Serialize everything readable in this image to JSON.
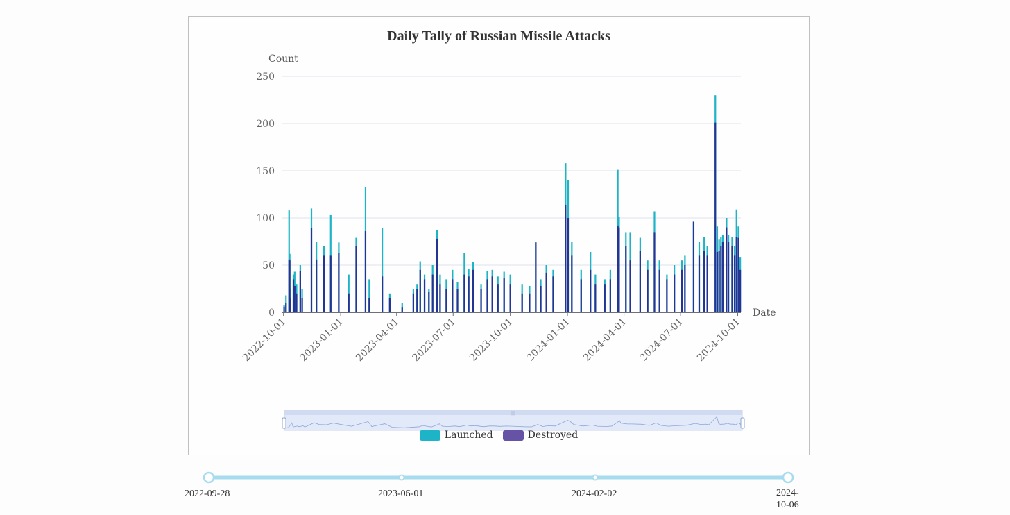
{
  "chart_data": {
    "type": "bar",
    "title": "Daily Tally of Russian Missile Attacks",
    "xlabel": "Date",
    "ylabel": "Count",
    "ylim": [
      0,
      250
    ],
    "yticks": [
      0,
      50,
      100,
      150,
      200,
      250
    ],
    "x_range": [
      "2022-09-28",
      "2024-10-06"
    ],
    "xticks": [
      "2022-10-01",
      "2023-01-01",
      "2023-04-01",
      "2023-07-01",
      "2023-10-01",
      "2024-01-01",
      "2024-04-01",
      "2024-07-01",
      "2024-10-01"
    ],
    "series": [
      {
        "name": "Launched",
        "color": "#1cb4c6",
        "points": [
          [
            "2022-10-02",
            8
          ],
          [
            "2022-10-05",
            18
          ],
          [
            "2022-10-10",
            108
          ],
          [
            "2022-10-11",
            62
          ],
          [
            "2022-10-12",
            25
          ],
          [
            "2022-10-17",
            40
          ],
          [
            "2022-10-19",
            43
          ],
          [
            "2022-10-22",
            30
          ],
          [
            "2022-10-28",
            50
          ],
          [
            "2022-10-31",
            25
          ],
          [
            "2022-11-15",
            110
          ],
          [
            "2022-11-23",
            75
          ],
          [
            "2022-12-05",
            70
          ],
          [
            "2022-12-16",
            103
          ],
          [
            "2022-12-29",
            74
          ],
          [
            "2023-01-14",
            40
          ],
          [
            "2023-01-26",
            79
          ],
          [
            "2023-02-10",
            133
          ],
          [
            "2023-02-16",
            35
          ],
          [
            "2023-03-09",
            89
          ],
          [
            "2023-03-21",
            20
          ],
          [
            "2023-04-10",
            10
          ],
          [
            "2023-04-28",
            25
          ],
          [
            "2023-05-04",
            30
          ],
          [
            "2023-05-09",
            54
          ],
          [
            "2023-05-16",
            40
          ],
          [
            "2023-05-23",
            25
          ],
          [
            "2023-05-29",
            50
          ],
          [
            "2023-06-05",
            87
          ],
          [
            "2023-06-10",
            40
          ],
          [
            "2023-06-20",
            35
          ],
          [
            "2023-06-30",
            45
          ],
          [
            "2023-07-08",
            32
          ],
          [
            "2023-07-19",
            63
          ],
          [
            "2023-07-26",
            46
          ],
          [
            "2023-08-02",
            53
          ],
          [
            "2023-08-15",
            30
          ],
          [
            "2023-08-25",
            44
          ],
          [
            "2023-09-02",
            45
          ],
          [
            "2023-09-11",
            38
          ],
          [
            "2023-09-21",
            43
          ],
          [
            "2023-10-01",
            40
          ],
          [
            "2023-10-20",
            30
          ],
          [
            "2023-11-01",
            28
          ],
          [
            "2023-11-11",
            75
          ],
          [
            "2023-11-19",
            35
          ],
          [
            "2023-11-28",
            50
          ],
          [
            "2023-12-09",
            45
          ],
          [
            "2023-12-29",
            158
          ],
          [
            "2024-01-02",
            140
          ],
          [
            "2024-01-08",
            75
          ],
          [
            "2024-01-23",
            45
          ],
          [
            "2024-02-07",
            64
          ],
          [
            "2024-02-15",
            40
          ],
          [
            "2024-03-01",
            35
          ],
          [
            "2024-03-10",
            45
          ],
          [
            "2024-03-22",
            151
          ],
          [
            "2024-03-24",
            101
          ],
          [
            "2024-04-04",
            85
          ],
          [
            "2024-04-11",
            85
          ],
          [
            "2024-04-27",
            79
          ],
          [
            "2024-05-09",
            55
          ],
          [
            "2024-05-20",
            107
          ],
          [
            "2024-05-28",
            55
          ],
          [
            "2024-06-09",
            40
          ],
          [
            "2024-06-21",
            50
          ],
          [
            "2024-07-03",
            55
          ],
          [
            "2024-07-08",
            60
          ],
          [
            "2024-07-22",
            96
          ],
          [
            "2024-07-31",
            75
          ],
          [
            "2024-08-08",
            80
          ],
          [
            "2024-08-13",
            70
          ],
          [
            "2024-08-26",
            230
          ],
          [
            "2024-08-29",
            91
          ],
          [
            "2024-09-01",
            77
          ],
          [
            "2024-09-04",
            80
          ],
          [
            "2024-09-07",
            82
          ],
          [
            "2024-09-13",
            100
          ],
          [
            "2024-09-16",
            82
          ],
          [
            "2024-09-22",
            80
          ],
          [
            "2024-09-26",
            70
          ],
          [
            "2024-09-29",
            109
          ],
          [
            "2024-10-02",
            91
          ],
          [
            "2024-10-05",
            58
          ]
        ]
      },
      {
        "name": "Destroyed",
        "color": "#223593",
        "points": [
          [
            "2022-10-02",
            6
          ],
          [
            "2022-10-05",
            10
          ],
          [
            "2022-10-10",
            56
          ],
          [
            "2022-10-11",
            55
          ],
          [
            "2022-10-12",
            15
          ],
          [
            "2022-10-17",
            35
          ],
          [
            "2022-10-19",
            28
          ],
          [
            "2022-10-22",
            20
          ],
          [
            "2022-10-28",
            44
          ],
          [
            "2022-10-31",
            15
          ],
          [
            "2022-11-15",
            89
          ],
          [
            "2022-11-23",
            56
          ],
          [
            "2022-12-05",
            60
          ],
          [
            "2022-12-16",
            60
          ],
          [
            "2022-12-29",
            63
          ],
          [
            "2023-01-14",
            20
          ],
          [
            "2023-01-26",
            70
          ],
          [
            "2023-02-10",
            86
          ],
          [
            "2023-02-16",
            15
          ],
          [
            "2023-03-09",
            38
          ],
          [
            "2023-03-21",
            15
          ],
          [
            "2023-04-10",
            5
          ],
          [
            "2023-04-28",
            20
          ],
          [
            "2023-05-04",
            25
          ],
          [
            "2023-05-09",
            45
          ],
          [
            "2023-05-16",
            35
          ],
          [
            "2023-05-23",
            22
          ],
          [
            "2023-05-29",
            40
          ],
          [
            "2023-06-05",
            78
          ],
          [
            "2023-06-10",
            30
          ],
          [
            "2023-06-20",
            25
          ],
          [
            "2023-06-30",
            35
          ],
          [
            "2023-07-08",
            25
          ],
          [
            "2023-07-19",
            40
          ],
          [
            "2023-07-26",
            38
          ],
          [
            "2023-08-02",
            45
          ],
          [
            "2023-08-15",
            25
          ],
          [
            "2023-08-25",
            35
          ],
          [
            "2023-09-02",
            38
          ],
          [
            "2023-09-11",
            30
          ],
          [
            "2023-09-21",
            36
          ],
          [
            "2023-10-01",
            30
          ],
          [
            "2023-10-20",
            20
          ],
          [
            "2023-11-01",
            20
          ],
          [
            "2023-11-11",
            74
          ],
          [
            "2023-11-19",
            28
          ],
          [
            "2023-11-28",
            42
          ],
          [
            "2023-12-09",
            38
          ],
          [
            "2023-12-29",
            114
          ],
          [
            "2024-01-02",
            100
          ],
          [
            "2024-01-08",
            60
          ],
          [
            "2024-01-23",
            35
          ],
          [
            "2024-02-07",
            45
          ],
          [
            "2024-02-15",
            30
          ],
          [
            "2024-03-01",
            30
          ],
          [
            "2024-03-10",
            35
          ],
          [
            "2024-03-22",
            92
          ],
          [
            "2024-03-24",
            90
          ],
          [
            "2024-04-04",
            70
          ],
          [
            "2024-04-11",
            55
          ],
          [
            "2024-04-27",
            65
          ],
          [
            "2024-05-09",
            45
          ],
          [
            "2024-05-20",
            85
          ],
          [
            "2024-05-28",
            45
          ],
          [
            "2024-06-09",
            35
          ],
          [
            "2024-06-21",
            40
          ],
          [
            "2024-07-03",
            45
          ],
          [
            "2024-07-08",
            50
          ],
          [
            "2024-07-22",
            96
          ],
          [
            "2024-07-31",
            60
          ],
          [
            "2024-08-08",
            65
          ],
          [
            "2024-08-13",
            60
          ],
          [
            "2024-08-26",
            201
          ],
          [
            "2024-08-29",
            64
          ],
          [
            "2024-09-01",
            65
          ],
          [
            "2024-09-04",
            70
          ],
          [
            "2024-09-07",
            75
          ],
          [
            "2024-09-13",
            90
          ],
          [
            "2024-09-16",
            75
          ],
          [
            "2024-09-22",
            70
          ],
          [
            "2024-09-26",
            60
          ],
          [
            "2024-09-29",
            80
          ],
          [
            "2024-10-02",
            79
          ],
          [
            "2024-10-05",
            45
          ]
        ]
      }
    ],
    "legend_position": "bottom"
  },
  "timeline": {
    "labels": [
      "2022-09-28",
      "2023-06-01",
      "2024-02-02",
      "2024-10-06"
    ],
    "end_label_parts": [
      "2024-",
      "10-06"
    ],
    "color": "#a7dcef"
  },
  "datazoom": {
    "start": 0,
    "end": 1
  }
}
